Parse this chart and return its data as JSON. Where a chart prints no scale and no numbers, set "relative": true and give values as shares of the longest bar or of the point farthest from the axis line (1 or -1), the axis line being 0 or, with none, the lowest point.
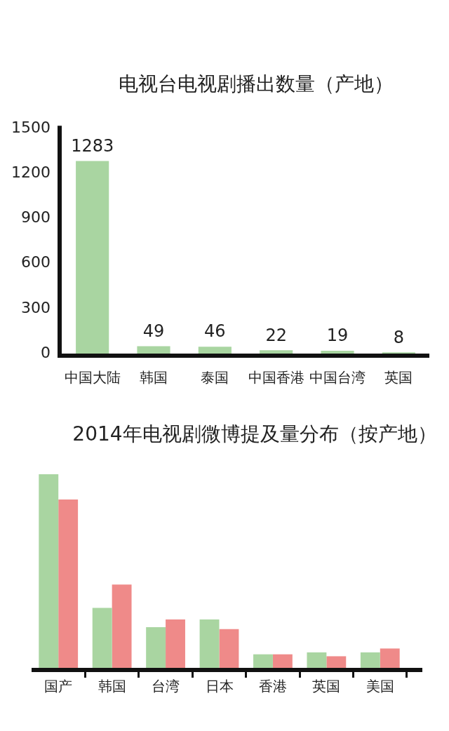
{
  "chart_data": [
    {
      "type": "bar",
      "title": "电视台电视剧播出数量（产地）",
      "categories": [
        "中国大陆",
        "韩国",
        "泰国",
        "中国香港",
        "中国台湾",
        "英国"
      ],
      "values": [
        1283,
        49,
        46,
        22,
        19,
        8
      ],
      "color": "#a9d5a1",
      "ylim": [
        0,
        1500
      ],
      "yticks": [
        0,
        300,
        600,
        900,
        1200,
        1500
      ],
      "data_labels": true
    },
    {
      "type": "bar",
      "title": "2014年电视剧微博提及量分布（按产地）",
      "categories": [
        "国产",
        "韩国",
        "台湾",
        "日本",
        "香港",
        "英国",
        "美国"
      ],
      "series": [
        {
          "color": "#a9d5a1",
          "values": [
            1,
            0.31,
            0.21,
            0.25,
            0.07,
            0.08,
            0.08
          ]
        },
        {
          "color": "#ef8a89",
          "values": [
            0.87,
            0.43,
            0.25,
            0.2,
            0.07,
            0.06,
            0.1
          ]
        }
      ],
      "relative": true
    }
  ]
}
